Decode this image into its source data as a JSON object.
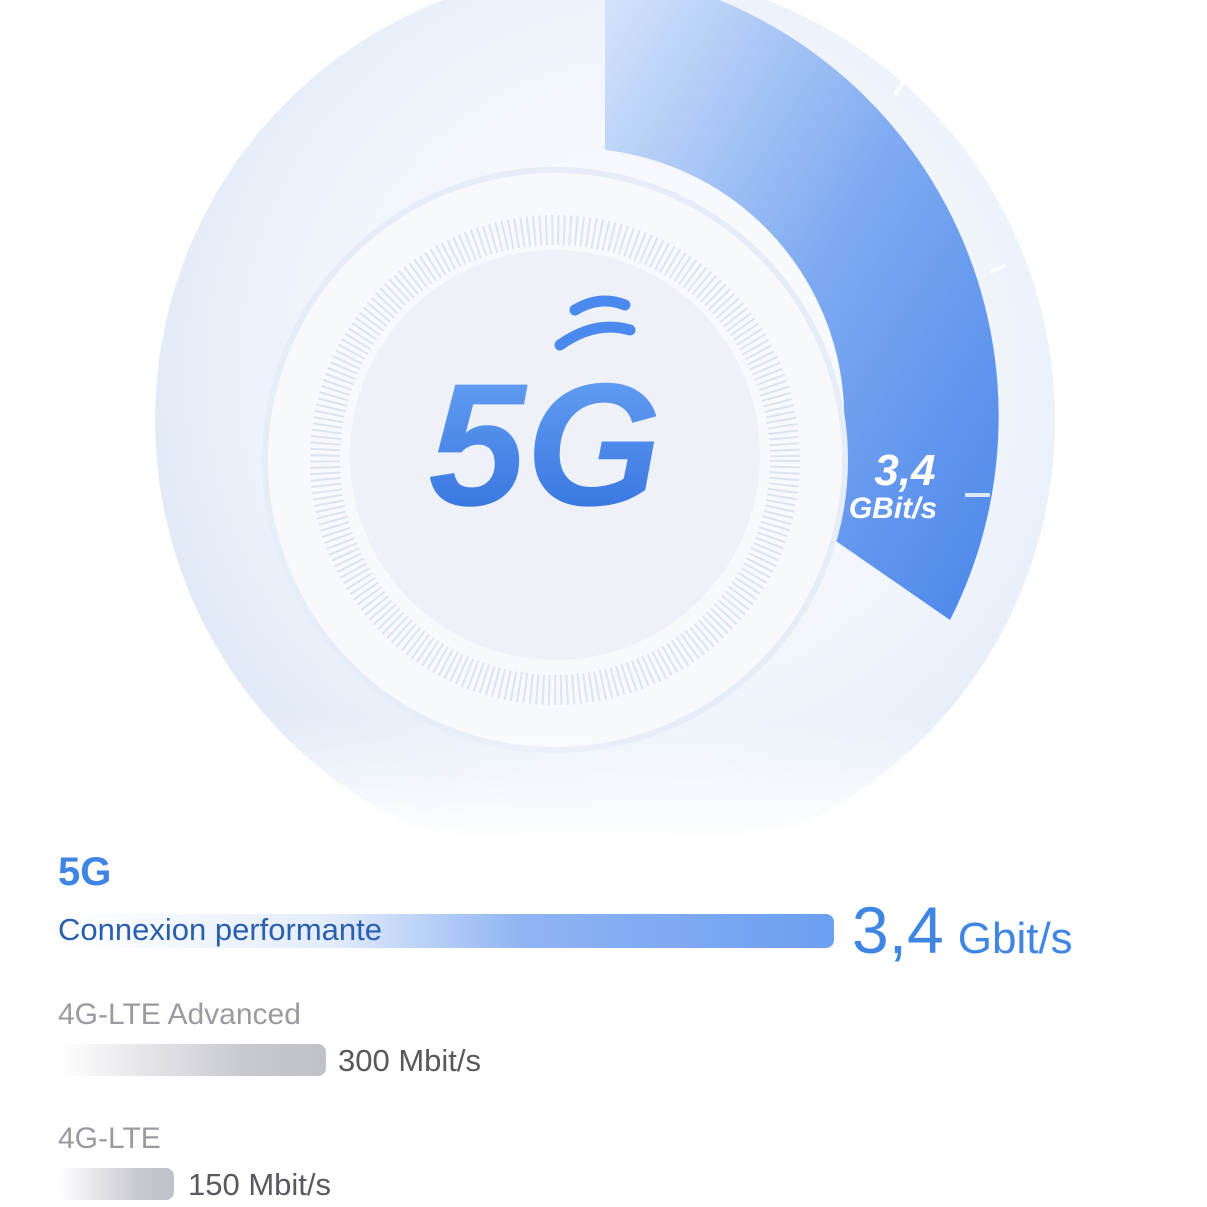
{
  "gauge": {
    "center_label": "5G",
    "speed_value": "3,4",
    "speed_unit": "GBit/s",
    "accent_color": "#3f86e4"
  },
  "comparison": [
    {
      "name": "5G",
      "description": "Connexion performante",
      "value": "3,4",
      "unit": "Gbit/s",
      "bar_color": "#6b9ff0"
    },
    {
      "name": "4G-LTE Advanced",
      "value": "300 Mbit/s",
      "bar_color": "#c0c0c8"
    },
    {
      "name": "4G-LTE",
      "value": "150 Mbit/s",
      "bar_color": "#c0c0c8"
    }
  ]
}
